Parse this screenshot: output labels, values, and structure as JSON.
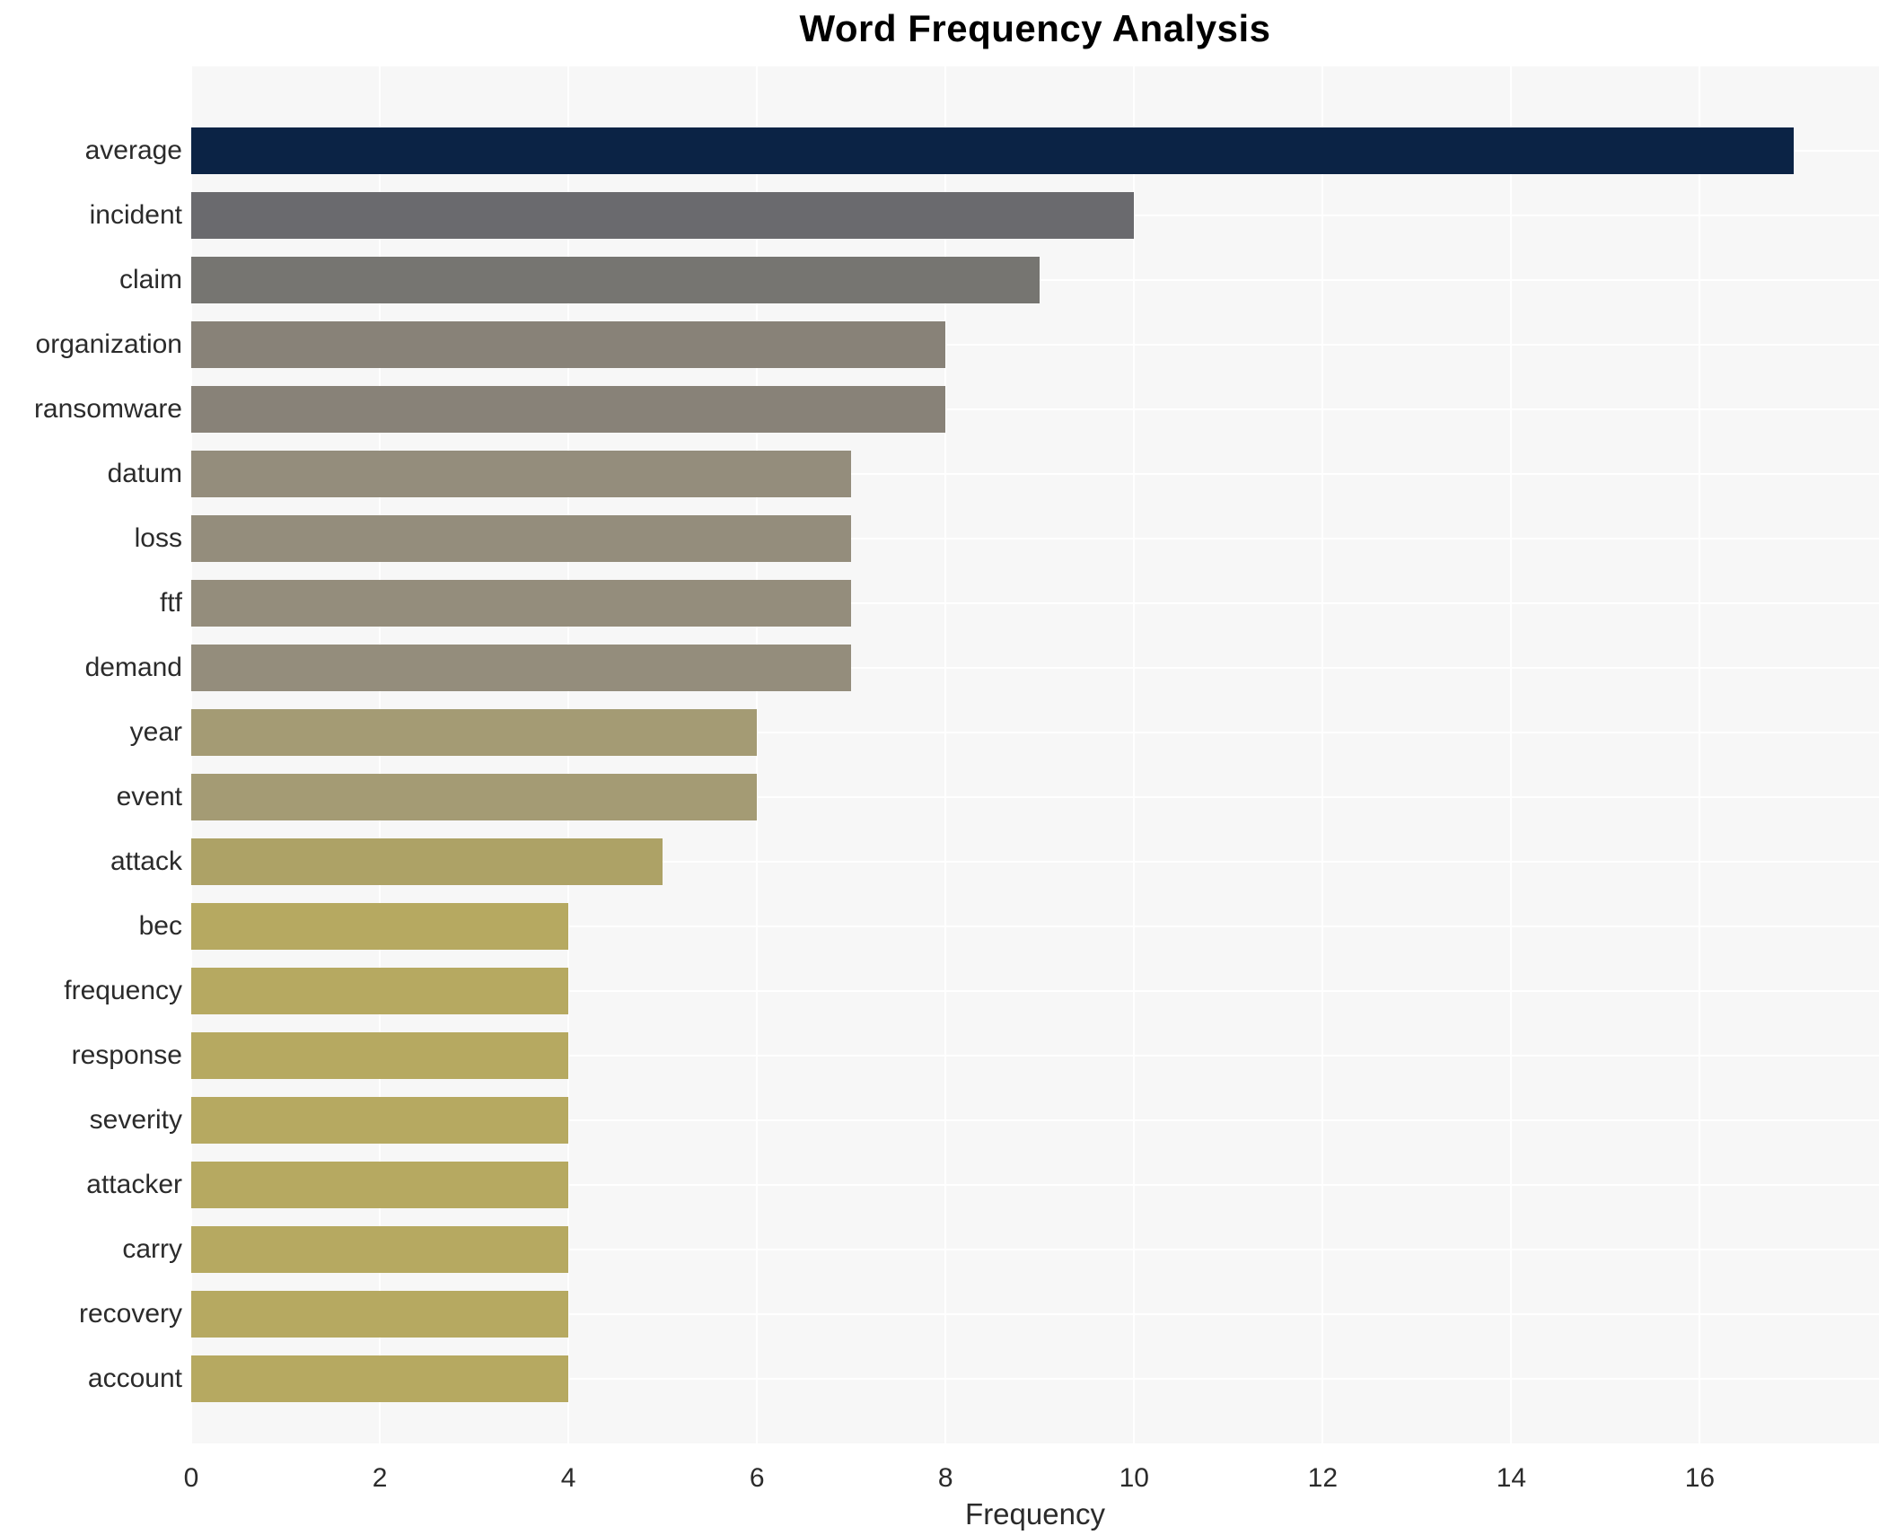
{
  "title": "Word Frequency Analysis",
  "chart_data": {
    "type": "bar",
    "orientation": "horizontal",
    "title": "Word Frequency Analysis",
    "xlabel": "Frequency",
    "ylabel": "",
    "categories": [
      "average",
      "incident",
      "claim",
      "organization",
      "ransomware",
      "datum",
      "loss",
      "ftf",
      "demand",
      "year",
      "event",
      "attack",
      "bec",
      "frequency",
      "response",
      "severity",
      "attacker",
      "carry",
      "recovery",
      "account"
    ],
    "values": [
      17,
      10,
      9,
      8,
      8,
      7,
      7,
      7,
      7,
      6,
      6,
      5,
      4,
      4,
      4,
      4,
      4,
      4,
      4,
      4
    ],
    "bar_colors": [
      "#0b2345",
      "#6a6a6e",
      "#767571",
      "#888278",
      "#888278",
      "#948d7c",
      "#948d7c",
      "#948d7c",
      "#948d7c",
      "#a49b74",
      "#a49b74",
      "#ada266",
      "#b6a961",
      "#b6a961",
      "#b6a961",
      "#b6a961",
      "#b6a961",
      "#b6a961",
      "#b6a961",
      "#b6a961"
    ],
    "xticks": [
      0,
      2,
      4,
      6,
      8,
      10,
      12,
      14,
      16
    ],
    "xlim": [
      0,
      17.9
    ],
    "grid": true,
    "legend": false,
    "plot_bg_color": "#f7f7f7",
    "grid_color": "#ffffff",
    "figure_bg_color": "#ffffff"
  }
}
